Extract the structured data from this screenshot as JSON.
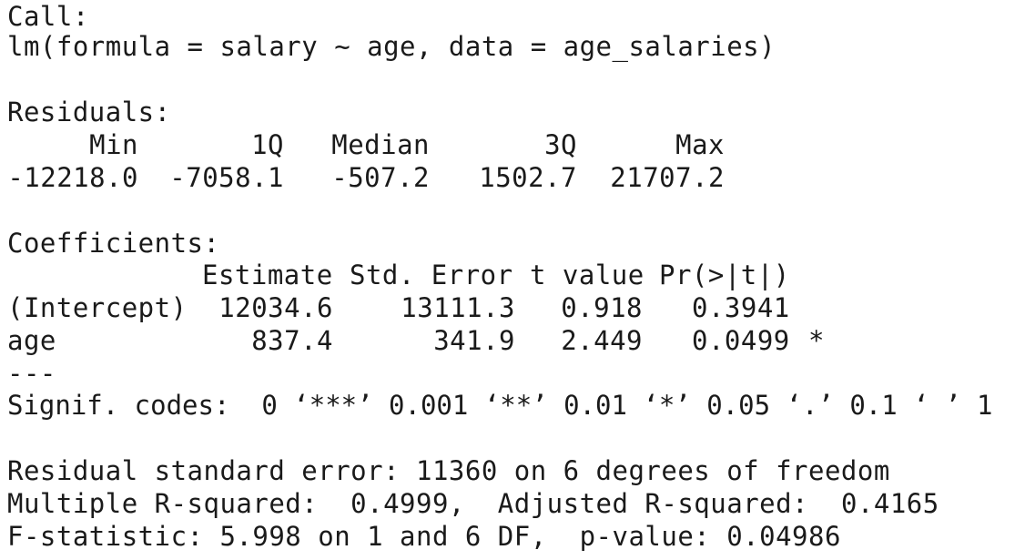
{
  "call": {
    "heading": "Call:",
    "formula": "lm(formula = salary ~ age, data = age_salaries)"
  },
  "residuals": {
    "heading": "Residuals:",
    "labels": [
      "Min",
      "1Q",
      "Median",
      "3Q",
      "Max"
    ],
    "values": [
      "-12218.0",
      "-7058.1",
      "-507.2",
      "1502.7",
      "21707.2"
    ]
  },
  "coefficients": {
    "heading": "Coefficients:",
    "columns": [
      "Estimate",
      "Std. Error",
      "t value",
      "Pr(>|t|)"
    ],
    "rows": [
      {
        "term": "(Intercept)",
        "estimate": "12034.6",
        "std_error": "13111.3",
        "t_value": "0.918",
        "p_value": "0.3941",
        "signif": ""
      },
      {
        "term": "age",
        "estimate": "837.4",
        "std_error": "341.9",
        "t_value": "2.449",
        "p_value": "0.0499",
        "signif": "*"
      }
    ],
    "separator": "---",
    "signif_codes": "Signif. codes:  0 ‘***’ 0.001 ‘**’ 0.01 ‘*’ 0.05 ‘.’ 0.1 ‘ ’ 1"
  },
  "summary": {
    "residual_se": "Residual standard error: 11360 on 6 degrees of freedom",
    "r_squared": "Multiple R-squared:  0.4999,\tAdjusted R-squared:  0.4165",
    "f_statistic": "F-statistic: 5.998 on 1 and 6 DF,  p-value: 0.04986"
  }
}
